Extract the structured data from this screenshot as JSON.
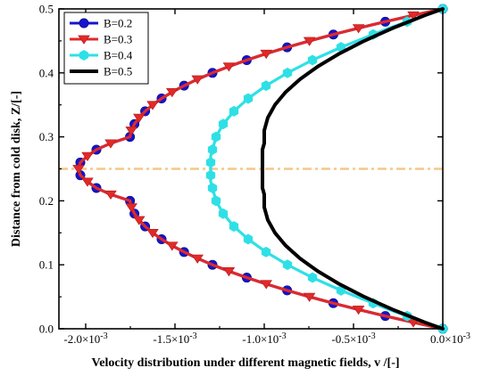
{
  "chart_data": {
    "type": "line",
    "xlabel": "Velocity distribution under different magnetic fields, v /[-]",
    "ylabel": "Distance from cold disk, Z/[-]",
    "xlim": [
      -0.00215,
      0.0
    ],
    "ylim": [
      0.0,
      0.5
    ],
    "x_ticks": [
      -0.002,
      -0.0015,
      -0.001,
      -0.0005,
      0.0
    ],
    "x_tick_labels": [
      {
        "mantissa": "-2.0×10",
        "exp": "-3"
      },
      {
        "mantissa": "-1.5×10",
        "exp": "-3"
      },
      {
        "mantissa": "-1.0×10",
        "exp": "-3"
      },
      {
        "mantissa": "-0.5×10",
        "exp": "-3"
      },
      {
        "mantissa": "0.0×10",
        "exp": "-3"
      }
    ],
    "y_ticks": [
      0.0,
      0.1,
      0.2,
      0.3,
      0.4,
      0.5
    ],
    "y_tick_labels": [
      "0.0",
      "0.1",
      "0.2",
      "0.3",
      "0.4",
      "0.5"
    ],
    "grid": false,
    "legend_position": "top-left",
    "reference_line": {
      "y": 0.25,
      "color": "#F2C98A",
      "style": "dash-dot"
    },
    "z": [
      0.0,
      0.01,
      0.02,
      0.03,
      0.04,
      0.05,
      0.06,
      0.07,
      0.08,
      0.09,
      0.1,
      0.11,
      0.12,
      0.13,
      0.14,
      0.15,
      0.16,
      0.17,
      0.18,
      0.19,
      0.2,
      0.21,
      0.22,
      0.23,
      0.24,
      0.25,
      0.26,
      0.27,
      0.28,
      0.29,
      0.3,
      0.31,
      0.32,
      0.33,
      0.34,
      0.35,
      0.36,
      0.37,
      0.38,
      0.39,
      0.4,
      0.41,
      0.42,
      0.43,
      0.44,
      0.45,
      0.46,
      0.47,
      0.48,
      0.49,
      0.5
    ],
    "series": [
      {
        "name": "B=0.2",
        "color": "#1515CC",
        "marker": "circle",
        "marker_step": 2,
        "values": [
          0.0,
          -0.000165,
          -0.000322,
          -0.000472,
          -0.000613,
          -0.000747,
          -0.000872,
          -0.000989,
          -0.001098,
          -0.001198,
          -0.00129,
          -0.001374,
          -0.001449,
          -0.001516,
          -0.001575,
          -0.001625,
          -0.001667,
          -0.001701,
          -0.001727,
          -0.001744,
          -0.001752,
          -0.00186,
          -0.00194,
          -0.00199,
          -0.00203,
          -0.00204,
          -0.00203,
          -0.00199,
          -0.00194,
          -0.00186,
          -0.001752,
          -0.001744,
          -0.001727,
          -0.001701,
          -0.001667,
          -0.001625,
          -0.001575,
          -0.001516,
          -0.001449,
          -0.001374,
          -0.00129,
          -0.001198,
          -0.001098,
          -0.000989,
          -0.000872,
          -0.000747,
          -0.000613,
          -0.000472,
          -0.000322,
          -0.000165,
          0.0
        ]
      },
      {
        "name": "B=0.3",
        "color": "#E02A2A",
        "marker": "triangle-down",
        "marker_step": 2,
        "values": [
          0.0,
          -0.000165,
          -0.000322,
          -0.000472,
          -0.000613,
          -0.000747,
          -0.000872,
          -0.000989,
          -0.001098,
          -0.001198,
          -0.00129,
          -0.001374,
          -0.001449,
          -0.001516,
          -0.001575,
          -0.001625,
          -0.001667,
          -0.001701,
          -0.001727,
          -0.001744,
          -0.001752,
          -0.00186,
          -0.00194,
          -0.00199,
          -0.00203,
          -0.00204,
          -0.00203,
          -0.00199,
          -0.00194,
          -0.00186,
          -0.001752,
          -0.001744,
          -0.001727,
          -0.001701,
          -0.001667,
          -0.001625,
          -0.001575,
          -0.001516,
          -0.001449,
          -0.001374,
          -0.00129,
          -0.001198,
          -0.001098,
          -0.000989,
          -0.000872,
          -0.000747,
          -0.000613,
          -0.000472,
          -0.000322,
          -0.000165,
          0.0
        ]
      },
      {
        "name": "B=0.4",
        "color": "#2EE0E6",
        "marker": "hexagon",
        "marker_step": 2,
        "values": [
          0.0,
          -0.0001,
          -0.0002,
          -0.0003,
          -0.00039,
          -0.00048,
          -0.00057,
          -0.00065,
          -0.00073,
          -0.0008,
          -0.00087,
          -0.00093,
          -0.00099,
          -0.00104,
          -0.00109,
          -0.00113,
          -0.00117,
          -0.0012,
          -0.00123,
          -0.00125,
          -0.00127,
          -0.00128,
          -0.00129,
          -0.0013,
          -0.0013,
          -0.0013,
          -0.0013,
          -0.0013,
          -0.00129,
          -0.00128,
          -0.00127,
          -0.00125,
          -0.00123,
          -0.0012,
          -0.00117,
          -0.00113,
          -0.00109,
          -0.00104,
          -0.00099,
          -0.00093,
          -0.00087,
          -0.0008,
          -0.00073,
          -0.00065,
          -0.00057,
          -0.00048,
          -0.00039,
          -0.0003,
          -0.0002,
          -0.0001,
          0.0
        ]
      },
      {
        "name": "B=0.5",
        "color": "#000000",
        "marker": "none",
        "marker_step": 0,
        "values": [
          0.0,
          -0.0001,
          -0.00019,
          -0.00028,
          -0.00036,
          -0.00044,
          -0.00051,
          -0.00058,
          -0.00064,
          -0.0007,
          -0.00075,
          -0.0008,
          -0.00084,
          -0.00088,
          -0.00091,
          -0.00094,
          -0.00096,
          -0.00098,
          -0.00099,
          -0.001,
          -0.001,
          -0.001,
          -0.00101,
          -0.00101,
          -0.00101,
          -0.00101,
          -0.00101,
          -0.00101,
          -0.00101,
          -0.001,
          -0.001,
          -0.001,
          -0.00099,
          -0.00098,
          -0.00096,
          -0.00094,
          -0.00091,
          -0.00088,
          -0.00084,
          -0.0008,
          -0.00075,
          -0.0007,
          -0.00064,
          -0.00058,
          -0.00051,
          -0.00044,
          -0.00036,
          -0.00028,
          -0.00019,
          -0.0001,
          0.0
        ]
      }
    ]
  }
}
